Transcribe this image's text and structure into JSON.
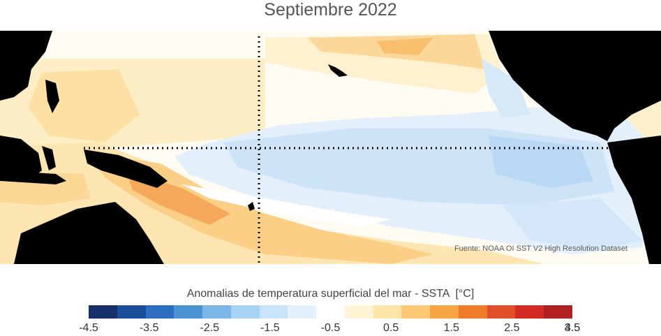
{
  "title": "Septiembre 2022",
  "source": "Fuente: NOAA OI SST V2 High Resolution Dataset",
  "colorbar": {
    "label": "Anomalias de temperatura superficial del mar - SSTA",
    "unit": "[°C]",
    "ticks": [
      "-4.5",
      "-3.5",
      "-2.5",
      "-1.5",
      "-0.5",
      "0.5",
      "1.5",
      "2.5",
      "3.5",
      "4.5"
    ],
    "colors": [
      "#16306b",
      "#1c4f9a",
      "#2b6fbe",
      "#4b93d3",
      "#7ab7e8",
      "#a6d3f3",
      "#c9e4f8",
      "#e2f1fb",
      "#ffffff",
      "#fff4d6",
      "#fde5a8",
      "#fbc874",
      "#f7a444",
      "#f07b2b",
      "#e2502b",
      "#d12b24",
      "#b01f21"
    ]
  },
  "map": {
    "land_color": "#000000",
    "ocean_neutral_color": "#ffffff",
    "reference_lines": "equator and 180° meridian (dotted)"
  }
}
